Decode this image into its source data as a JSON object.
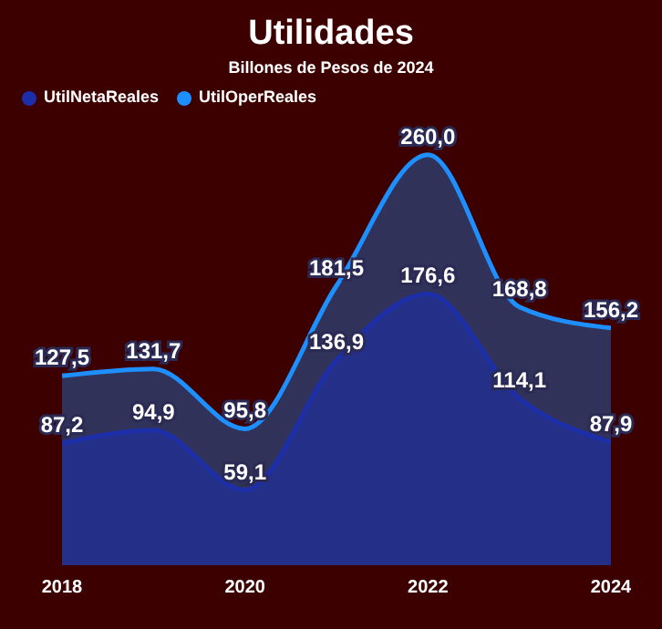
{
  "chart_data": {
    "type": "area",
    "title": "Utilidades",
    "subtitle": "Billones de Pesos de 2024",
    "x": [
      2018,
      2019,
      2020,
      2021,
      2022,
      2023,
      2024
    ],
    "xlim": [
      2018,
      2024
    ],
    "xticks": [
      2018,
      2020,
      2022,
      2024
    ],
    "tick_labels": "x",
    "series": [
      {
        "name": "UtilOperReales",
        "color": "#1e8fff",
        "values": [
          127.5,
          131.7,
          95.8,
          181.5,
          260.0,
          168.8,
          156.2
        ],
        "value_labels": [
          "127,5",
          "131,7",
          "95,8",
          "181,5",
          "260,0",
          "168,8",
          "156,2"
        ]
      },
      {
        "name": "UtilNetaReales",
        "color": "#1c2fa8",
        "values": [
          87.2,
          94.9,
          59.1,
          136.9,
          176.6,
          114.1,
          87.9
        ],
        "value_labels": [
          "87,2",
          "94,9",
          "59,1",
          "136,9",
          "176,6",
          "114,1",
          "87,9"
        ]
      }
    ],
    "legend": "top left",
    "grid": false
  }
}
